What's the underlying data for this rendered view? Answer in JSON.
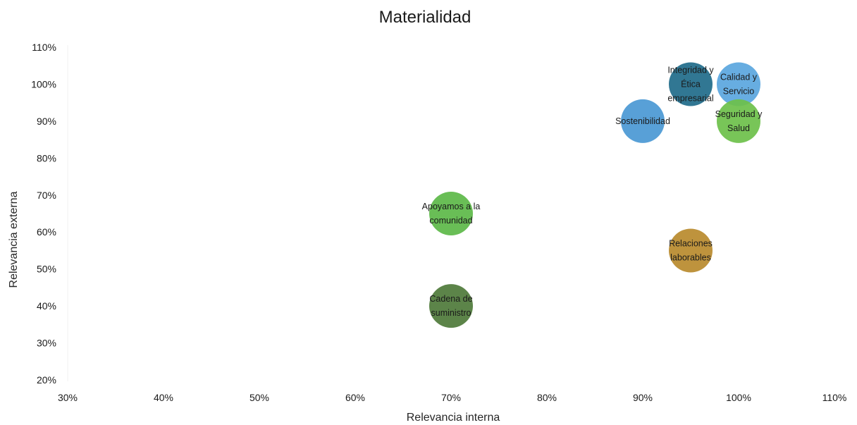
{
  "chart_data": {
    "type": "scatter",
    "title": "Materialidad",
    "xlabel": "Relevancia interna",
    "ylabel": "Relevancia externa",
    "xlim": [
      30,
      110
    ],
    "ylim": [
      20,
      110
    ],
    "x_ticks": [
      "30%",
      "40%",
      "50%",
      "60%",
      "70%",
      "80%",
      "90%",
      "100%",
      "110%"
    ],
    "y_ticks": [
      "110%",
      "100%",
      "90%",
      "80%",
      "70%",
      "60%",
      "50%",
      "40%",
      "30%",
      "20%"
    ],
    "grid": false,
    "legend": "none",
    "points": [
      {
        "label": [
          "Integridad y",
          "Ética",
          "empresarial"
        ],
        "x": 95,
        "y": 100,
        "color": "#1f6b8a"
      },
      {
        "label": [
          "Calidad y",
          "Servicio"
        ],
        "x": 100,
        "y": 100,
        "color": "#5aa6de"
      },
      {
        "label": [
          "Seguridad y",
          "Salud"
        ],
        "x": 100,
        "y": 90,
        "color": "#6cc04a"
      },
      {
        "label": [
          "Sostenibilidad"
        ],
        "x": 90,
        "y": 90,
        "color": "#4a98d4"
      },
      {
        "label": [
          "Apoyamos a la",
          "comunidad"
        ],
        "x": 70,
        "y": 65,
        "color": "#5cb848"
      },
      {
        "label": [
          "Relaciones",
          "laborables"
        ],
        "x": 95,
        "y": 55,
        "color": "#b98a2c"
      },
      {
        "label": [
          "Cadena de",
          "suministro"
        ],
        "x": 70,
        "y": 40,
        "color": "#4e7a3a"
      }
    ]
  }
}
